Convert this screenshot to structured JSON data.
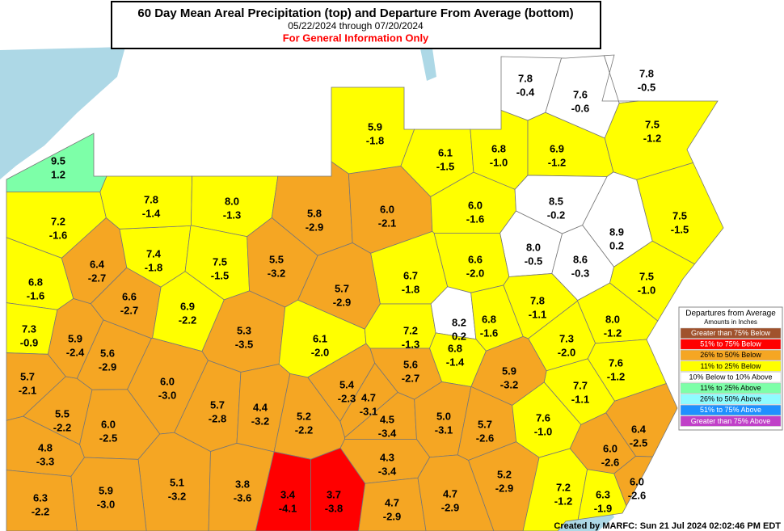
{
  "header": {
    "title": "60 Day Mean Areal Precipitation (top) and Departure From Average (bottom)",
    "dates": "05/22/2024 through 07/20/2024",
    "notice": "For General Information Only"
  },
  "legend": {
    "title": "Departures from Average",
    "subtitle": "Amounts in Inches",
    "items": [
      {
        "label": "Greater than 75% Below",
        "color": "#a0522d"
      },
      {
        "label": "51% to 75% Below",
        "color": "#ff0000"
      },
      {
        "label": "26% to 50% Below",
        "color": "#f5a623"
      },
      {
        "label": "11% to 25% Below",
        "color": "#ffff00"
      },
      {
        "label": "10% Below to 10% Above",
        "color": "#ffffff"
      },
      {
        "label": "11% to 25% Above",
        "color": "#7dffa8"
      },
      {
        "label": "26% to 50% Above",
        "color": "#8ffcff"
      },
      {
        "label": "51% to 75% Above",
        "color": "#1e90ff"
      },
      {
        "label": "Greater than 75% Above",
        "color": "#c040c8"
      }
    ]
  },
  "regions": [
    {
      "precip": "9.5",
      "departure": "1.2",
      "color": "#7dffa8"
    },
    {
      "precip": "7.2",
      "departure": "-1.6",
      "color": "#ffff00"
    },
    {
      "precip": "6.8",
      "departure": "-1.6",
      "color": "#ffff00"
    },
    {
      "precip": "7.3",
      "departure": "-0.9",
      "color": "#ffff00"
    },
    {
      "precip": "5.7",
      "departure": "-2.1",
      "color": "#f5a623"
    },
    {
      "precip": "5.5",
      "departure": "-2.2",
      "color": "#f5a623"
    },
    {
      "precip": "4.8",
      "departure": "-3.3",
      "color": "#f5a623"
    },
    {
      "precip": "6.3",
      "departure": "-2.2",
      "color": "#f5a623"
    },
    {
      "precip": "5.9",
      "departure": "-2.4",
      "color": "#f5a623"
    },
    {
      "precip": "6.4",
      "departure": "-2.7",
      "color": "#f5a623"
    },
    {
      "precip": "6.6",
      "departure": "-2.7",
      "color": "#f5a623"
    },
    {
      "precip": "7.4",
      "departure": "-1.8",
      "color": "#ffff00"
    },
    {
      "precip": "7.8",
      "departure": "-1.4",
      "color": "#ffff00"
    },
    {
      "precip": "8.0",
      "departure": "-1.3",
      "color": "#ffff00"
    },
    {
      "precip": "5.8",
      "departure": "-2.9",
      "color": "#f5a623"
    },
    {
      "precip": "6.0",
      "departure": "-2.1",
      "color": "#f5a623"
    },
    {
      "precip": "5.9",
      "departure": "-1.8",
      "color": "#ffff00"
    },
    {
      "precip": "6.1",
      "departure": "-1.5",
      "color": "#ffff00"
    },
    {
      "precip": "6.8",
      "departure": "-1.0",
      "color": "#ffff00"
    },
    {
      "precip": "6.9",
      "departure": "-1.2",
      "color": "#ffff00"
    },
    {
      "precip": "7.8",
      "departure": "-0.4",
      "color": "#ffffff"
    },
    {
      "precip": "7.6",
      "departure": "-0.6",
      "color": "#ffffff"
    },
    {
      "precip": "7.8",
      "departure": "-0.5",
      "color": "#ffffff"
    },
    {
      "precip": "7.5",
      "departure": "-1.2",
      "color": "#ffff00"
    },
    {
      "precip": "6.0",
      "departure": "-1.6",
      "color": "#ffff00"
    },
    {
      "precip": "8.5",
      "departure": "-0.2",
      "color": "#ffffff"
    },
    {
      "precip": "8.9",
      "departure": "0.2",
      "color": "#ffffff"
    },
    {
      "precip": "7.5",
      "departure": "-1.5",
      "color": "#ffff00"
    },
    {
      "precip": "8.0",
      "departure": "-0.5",
      "color": "#ffffff"
    },
    {
      "precip": "8.6",
      "departure": "-0.3",
      "color": "#ffffff"
    },
    {
      "precip": "7.5",
      "departure": "-1.5",
      "color": "#ffff00"
    },
    {
      "precip": "5.5",
      "departure": "-3.2",
      "color": "#f5a623"
    },
    {
      "precip": "6.9",
      "departure": "-2.2",
      "color": "#ffff00"
    },
    {
      "precip": "6.7",
      "departure": "-1.8",
      "color": "#ffff00"
    },
    {
      "precip": "6.6",
      "departure": "-2.0",
      "color": "#ffff00"
    },
    {
      "precip": "5.7",
      "departure": "-2.9",
      "color": "#f5a623"
    },
    {
      "precip": "5.3",
      "departure": "-3.5",
      "color": "#f5a623"
    },
    {
      "precip": "6.1",
      "departure": "-2.0",
      "color": "#ffff00"
    },
    {
      "precip": "7.2",
      "departure": "-1.3",
      "color": "#ffff00"
    },
    {
      "precip": "8.2",
      "departure": "0.2",
      "color": "#ffffff"
    },
    {
      "precip": "6.8",
      "departure": "-1.6",
      "color": "#ffff00"
    },
    {
      "precip": "6.8",
      "departure": "-1.4",
      "color": "#ffff00"
    },
    {
      "precip": "7.8",
      "departure": "-1.1",
      "color": "#ffff00"
    },
    {
      "precip": "7.5",
      "departure": "-1.0",
      "color": "#ffff00"
    },
    {
      "precip": "8.0",
      "departure": "-1.2",
      "color": "#ffff00"
    },
    {
      "precip": "7.3",
      "departure": "-2.0",
      "color": "#ffff00"
    },
    {
      "precip": "7.6",
      "departure": "-1.2",
      "color": "#ffff00"
    },
    {
      "precip": "7.7",
      "departure": "-1.1",
      "color": "#ffff00"
    },
    {
      "precip": "5.6",
      "departure": "-2.9",
      "color": "#f5a623"
    },
    {
      "precip": "6.0",
      "departure": "-3.0",
      "color": "#f5a623"
    },
    {
      "precip": "5.6",
      "departure": "-2.7",
      "color": "#f5a623"
    },
    {
      "precip": "5.9",
      "departure": "-3.2",
      "color": "#f5a623"
    },
    {
      "precip": "5.4",
      "departure": "-2.3",
      "color": "#f5a623"
    },
    {
      "precip": "4.7",
      "departure": "-3.1",
      "color": "#f5a623"
    },
    {
      "precip": "5.7",
      "departure": "-2.8",
      "color": "#f5a623"
    },
    {
      "precip": "4.4",
      "departure": "-3.2",
      "color": "#f5a623"
    },
    {
      "precip": "5.2",
      "departure": "-2.2",
      "color": "#f5a623"
    },
    {
      "precip": "4.5",
      "departure": "-3.4",
      "color": "#f5a623"
    },
    {
      "precip": "5.0",
      "departure": "-3.1",
      "color": "#f5a623"
    },
    {
      "precip": "5.7",
      "departure": "-2.6",
      "color": "#f5a623"
    },
    {
      "precip": "7.6",
      "departure": "-1.0",
      "color": "#ffff00"
    },
    {
      "precip": "6.4",
      "departure": "-2.5",
      "color": "#f5a623"
    },
    {
      "precip": "6.0",
      "departure": "-2.5",
      "color": "#f5a623"
    },
    {
      "precip": "6.0",
      "departure": "-2.6",
      "color": "#f5a623"
    },
    {
      "precip": "4.3",
      "departure": "-3.4",
      "color": "#f5a623"
    },
    {
      "precip": "5.1",
      "departure": "-3.2",
      "color": "#f5a623"
    },
    {
      "precip": "5.9",
      "departure": "-3.0",
      "color": "#f5a623"
    },
    {
      "precip": "3.8",
      "departure": "-3.6",
      "color": "#f5a623"
    },
    {
      "precip": "3.4",
      "departure": "-4.1",
      "color": "#ff0000"
    },
    {
      "precip": "3.7",
      "departure": "-3.8",
      "color": "#ff0000"
    },
    {
      "precip": "4.7",
      "departure": "-2.9",
      "color": "#f5a623"
    },
    {
      "precip": "4.7",
      "departure": "-2.9",
      "color": "#f5a623"
    },
    {
      "precip": "5.2",
      "departure": "-2.9",
      "color": "#f5a623"
    },
    {
      "precip": "7.2",
      "departure": "-1.2",
      "color": "#ffff00"
    },
    {
      "precip": "6.3",
      "departure": "-1.9",
      "color": "#ffff00"
    },
    {
      "precip": "6.0",
      "departure": "-2.6",
      "color": "#f5a623"
    }
  ],
  "footer": "Created by MARFC: Sun 21 Jul 2024 02:02:46 PM EDT"
}
